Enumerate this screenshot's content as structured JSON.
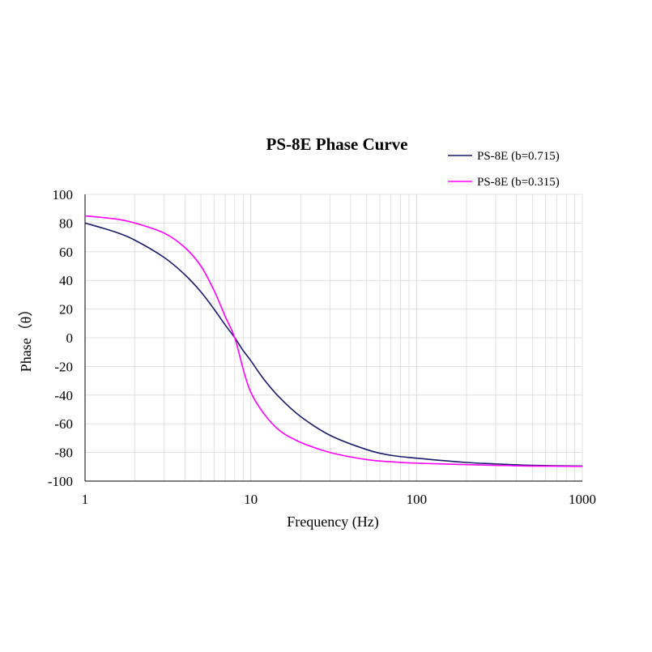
{
  "chart_data": {
    "type": "line",
    "title": "PS-8E Phase Curve",
    "xlabel": "Frequency (Hz)",
    "ylabel": "Phase（θ）",
    "xscale": "log",
    "xlim": [
      1,
      1000
    ],
    "ylim": [
      -100,
      100
    ],
    "x_ticks": [
      "1",
      "10",
      "100",
      "1000"
    ],
    "y_ticks": [
      "100",
      "80",
      "60",
      "40",
      "20",
      "0",
      "-20",
      "-40",
      "-60",
      "-80",
      "-100"
    ],
    "grid": true,
    "legend_position": "top-right",
    "x": [
      1,
      1.5,
      2,
      3,
      4,
      5,
      6,
      7,
      8,
      9,
      10,
      12,
      15,
      20,
      30,
      50,
      70,
      100,
      200,
      300,
      500,
      1000
    ],
    "series": [
      {
        "name": "PS-8E (b=0.715)",
        "color": "#1a1a6e",
        "values": [
          80,
          74,
          68,
          56,
          44,
          32,
          20,
          9,
          0,
          -9,
          -16,
          -29,
          -42,
          -55,
          -68,
          -78,
          -82,
          -84,
          -87,
          -88,
          -89,
          -89.5
        ]
      },
      {
        "name": "PS-8E (b=0.315)",
        "color": "#ff00ff",
        "values": [
          85,
          83,
          80,
          73,
          63,
          50,
          33,
          15,
          0,
          -22,
          -38,
          -53,
          -65,
          -73,
          -80,
          -85,
          -86.5,
          -87.5,
          -88.5,
          -89,
          -89.5,
          -89.7
        ]
      }
    ]
  }
}
